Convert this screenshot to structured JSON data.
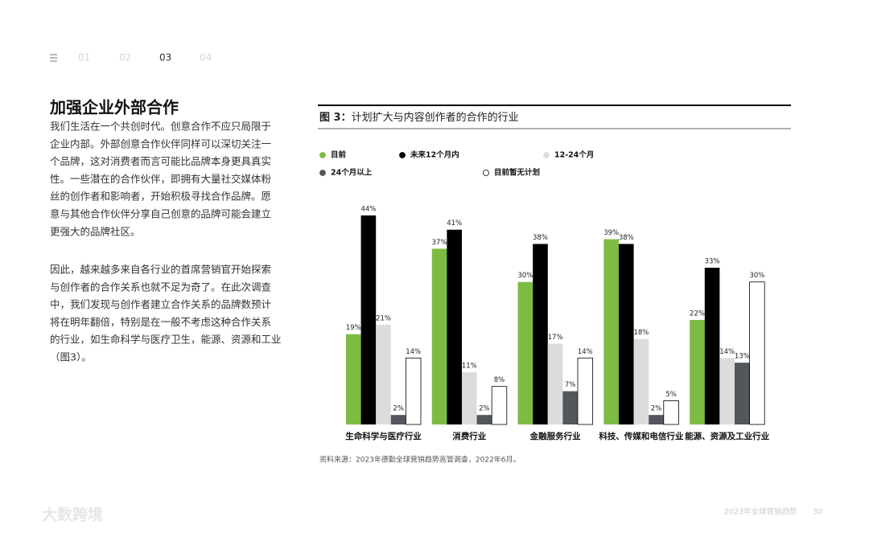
{
  "nav": [
    "01",
    "02",
    "03",
    "04"
  ],
  "heading": "加强企业外部合作",
  "paragraphs": [
    [
      "我们生活在一个共创时代。创意合作不应只局限于",
      "企业内部。外部创意合作伙伴同样可以深切关注一",
      "个品牌，这对消费者而言可能比品牌本身更具真实",
      "性。一些潜在的合作伙伴，即拥有大量社交媒体粉",
      "丝的创作者和影响者，开始积极寻找合作品牌。愿",
      "意与其他合作伙伴分享自己创意的品牌可能会建立",
      "更强大的品牌社区。"
    ],
    [
      "因此，越来越多来自各行业的首席营销官开始探索",
      "与创作者的合作关系也就不足为奇了。在此次调查",
      "中，我们发现与创作者建立合作关系的品牌数预计",
      "将在明年翻倍，特别是在一般不考虑这种合作关系",
      "的行业，如生命科学与医疗卫生，能源、资源和工业",
      "（图3）。"
    ]
  ],
  "chart_data": {
    "type": "bar",
    "figure_label": "图 3：",
    "title": "计划扩大与内容创作者的合作的行业",
    "categories": [
      "生命科学与医疗行业",
      "消费行业",
      "金融服务行业",
      "科技、传媒和电信行业",
      "能源、资源及工业行业"
    ],
    "series": [
      {
        "name": "目前",
        "color": "#7dbb42",
        "values": [
          19,
          37,
          30,
          39,
          22
        ],
        "value_labels": [
          "19%",
          "37%",
          "30%",
          "39%",
          "22%"
        ]
      },
      {
        "name": "未来12个月内",
        "color": "#000000",
        "values": [
          44,
          41,
          38,
          38,
          33
        ],
        "value_labels": [
          "44%",
          "41%",
          "38%",
          "38%",
          "33%"
        ]
      },
      {
        "name": "12-24个月",
        "color": "#dcdcdc",
        "values": [
          21,
          11,
          17,
          18,
          14
        ],
        "value_labels": [
          "21%",
          "11%",
          "17%",
          "18%",
          "14%"
        ]
      },
      {
        "name": "24个月以上",
        "color": "#53565a",
        "values": [
          2,
          2,
          7,
          2,
          13
        ],
        "value_labels": [
          "2%",
          "2%",
          "7%",
          "2%",
          "13%"
        ]
      },
      {
        "name": "目前暂无计划",
        "color": "#ffffff",
        "values": [
          14,
          8,
          14,
          5,
          30
        ],
        "value_labels": [
          "14%",
          "8%",
          "14%",
          "5%",
          "30%"
        ]
      }
    ]
  },
  "source": "资料来源：2023年德勤全球营销趋势高管调查，2022年6月。",
  "footer": {
    "title": "2023年全球营销趋势",
    "page": "30"
  },
  "watermark": "大数跨境"
}
